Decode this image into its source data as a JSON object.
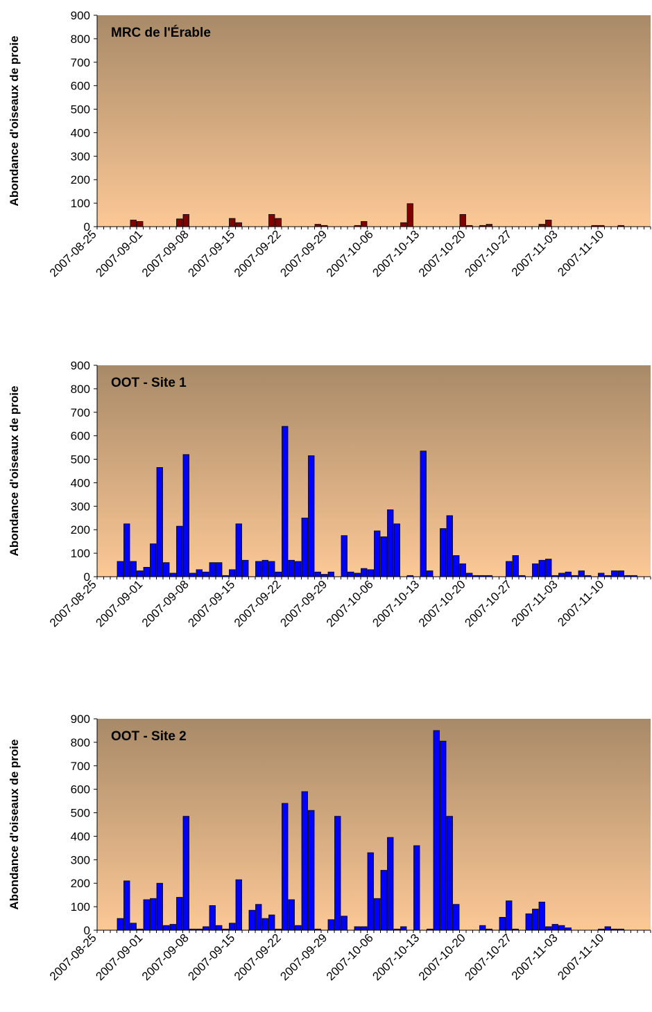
{
  "chart_data": [
    {
      "type": "bar",
      "title": "MRC de l'Érable",
      "ylabel": "Abondance d'oiseaux de proie",
      "xlabel": "",
      "ylim": [
        0,
        900
      ],
      "yticks": [
        "0",
        "100",
        "200",
        "300",
        "400",
        "500",
        "600",
        "700",
        "800",
        "900"
      ],
      "x_start": "2007-08-25",
      "x_end": "2007-11-17",
      "xtick_labels": [
        "2007-08-25",
        "2007-09-01",
        "2007-09-08",
        "2007-09-15",
        "2007-09-22",
        "2007-09-29",
        "2007-10-06",
        "2007-10-13",
        "2007-10-20",
        "2007-10-27",
        "2007-11-03",
        "2007-11-10"
      ],
      "bar_color": "#800000",
      "background_gradient": [
        "#A88A68",
        "#FCC896"
      ],
      "grid": false,
      "legend": "none",
      "dates": [
        "2007-08-30",
        "2007-08-31",
        "2007-09-06",
        "2007-09-07",
        "2007-09-14",
        "2007-09-15",
        "2007-09-20",
        "2007-09-21",
        "2007-09-27",
        "2007-09-28",
        "2007-10-03",
        "2007-10-04",
        "2007-10-10",
        "2007-10-11",
        "2007-10-19",
        "2007-10-20",
        "2007-10-22",
        "2007-10-23",
        "2007-10-31",
        "2007-11-01",
        "2007-11-08",
        "2007-11-09",
        "2007-11-12"
      ],
      "values": [
        28,
        22,
        33,
        52,
        35,
        17,
        52,
        35,
        10,
        5,
        5,
        22,
        17,
        98,
        52,
        5,
        5,
        10,
        10,
        28,
        5,
        5,
        5
      ]
    },
    {
      "type": "bar",
      "title": "OOT - Site 1",
      "ylabel": "Abondance d'oiseaux de proie",
      "xlabel": "",
      "ylim": [
        0,
        900
      ],
      "yticks": [
        "0",
        "100",
        "200",
        "300",
        "400",
        "500",
        "600",
        "700",
        "800",
        "900"
      ],
      "x_start": "2007-08-25",
      "x_end": "2007-11-17",
      "xtick_labels": [
        "2007-08-25",
        "2007-09-01",
        "2007-09-08",
        "2007-09-15",
        "2007-09-22",
        "2007-09-29",
        "2007-10-06",
        "2007-10-13",
        "2007-10-20",
        "2007-10-27",
        "2007-11-03",
        "2007-11-10"
      ],
      "bar_color": "#0000FF",
      "background_gradient": [
        "#A88A68",
        "#FCC896"
      ],
      "grid": false,
      "legend": "none",
      "dates": [
        "2007-08-28",
        "2007-08-29",
        "2007-08-30",
        "2007-08-31",
        "2007-09-01",
        "2007-09-02",
        "2007-09-03",
        "2007-09-04",
        "2007-09-05",
        "2007-09-06",
        "2007-09-07",
        "2007-09-08",
        "2007-09-09",
        "2007-09-10",
        "2007-09-11",
        "2007-09-12",
        "2007-09-13",
        "2007-09-14",
        "2007-09-15",
        "2007-09-16",
        "2007-09-18",
        "2007-09-19",
        "2007-09-20",
        "2007-09-21",
        "2007-09-22",
        "2007-09-23",
        "2007-09-24",
        "2007-09-25",
        "2007-09-26",
        "2007-09-27",
        "2007-09-28",
        "2007-09-29",
        "2007-10-01",
        "2007-10-02",
        "2007-10-03",
        "2007-10-04",
        "2007-10-05",
        "2007-10-06",
        "2007-10-07",
        "2007-10-08",
        "2007-10-09",
        "2007-10-11",
        "2007-10-13",
        "2007-10-14",
        "2007-10-16",
        "2007-10-17",
        "2007-10-18",
        "2007-10-19",
        "2007-10-20",
        "2007-10-21",
        "2007-10-22",
        "2007-10-23",
        "2007-10-26",
        "2007-10-27",
        "2007-10-28",
        "2007-10-30",
        "2007-10-31",
        "2007-11-01",
        "2007-11-02",
        "2007-11-03",
        "2007-11-04",
        "2007-11-05",
        "2007-11-06",
        "2007-11-07",
        "2007-11-09",
        "2007-11-10",
        "2007-11-11",
        "2007-11-12",
        "2007-11-13",
        "2007-11-14"
      ],
      "values": [
        65,
        225,
        65,
        25,
        40,
        140,
        465,
        60,
        15,
        215,
        520,
        15,
        30,
        20,
        60,
        60,
        5,
        30,
        225,
        70,
        65,
        70,
        65,
        20,
        640,
        70,
        65,
        250,
        515,
        20,
        10,
        20,
        175,
        20,
        15,
        35,
        30,
        195,
        170,
        285,
        225,
        5,
        535,
        25,
        205,
        260,
        90,
        55,
        15,
        5,
        5,
        5,
        65,
        90,
        5,
        55,
        70,
        75,
        5,
        15,
        20,
        5,
        25,
        5,
        15,
        5,
        25,
        25,
        5,
        5
      ]
    },
    {
      "type": "bar",
      "title": "OOT - Site 2",
      "ylabel": "Abondance d'oiseaux de proie",
      "xlabel": "",
      "ylim": [
        0,
        900
      ],
      "yticks": [
        "0",
        "100",
        "200",
        "300",
        "400",
        "500",
        "600",
        "700",
        "800",
        "900"
      ],
      "x_start": "2007-08-25",
      "x_end": "2007-11-17",
      "xtick_labels": [
        "2007-08-25",
        "2007-09-01",
        "2007-09-08",
        "2007-09-15",
        "2007-09-22",
        "2007-09-29",
        "2007-10-06",
        "2007-10-13",
        "2007-10-20",
        "2007-10-27",
        "2007-11-03",
        "2007-11-10"
      ],
      "bar_color": "#0000FF",
      "background_gradient": [
        "#A88A68",
        "#FCC896"
      ],
      "grid": false,
      "legend": "none",
      "dates": [
        "2007-08-28",
        "2007-08-29",
        "2007-08-30",
        "2007-08-31",
        "2007-09-01",
        "2007-09-02",
        "2007-09-03",
        "2007-09-04",
        "2007-09-05",
        "2007-09-06",
        "2007-09-07",
        "2007-09-08",
        "2007-09-09",
        "2007-09-10",
        "2007-09-11",
        "2007-09-12",
        "2007-09-13",
        "2007-09-14",
        "2007-09-15",
        "2007-09-17",
        "2007-09-18",
        "2007-09-19",
        "2007-09-20",
        "2007-09-21",
        "2007-09-22",
        "2007-09-23",
        "2007-09-24",
        "2007-09-25",
        "2007-09-26",
        "2007-09-27",
        "2007-09-29",
        "2007-09-30",
        "2007-10-01",
        "2007-10-03",
        "2007-10-04",
        "2007-10-05",
        "2007-10-06",
        "2007-10-07",
        "2007-10-08",
        "2007-10-09",
        "2007-10-10",
        "2007-10-12",
        "2007-10-14",
        "2007-10-15",
        "2007-10-16",
        "2007-10-17",
        "2007-10-18",
        "2007-10-22",
        "2007-10-23",
        "2007-10-25",
        "2007-10-26",
        "2007-10-27",
        "2007-10-29",
        "2007-10-30",
        "2007-10-31",
        "2007-11-01",
        "2007-11-02",
        "2007-11-03",
        "2007-11-04",
        "2007-11-09",
        "2007-11-10",
        "2007-11-11",
        "2007-11-12"
      ],
      "values": [
        50,
        210,
        30,
        5,
        130,
        135,
        200,
        20,
        25,
        140,
        485,
        5,
        5,
        15,
        105,
        20,
        5,
        30,
        215,
        85,
        110,
        50,
        65,
        5,
        540,
        130,
        20,
        590,
        510,
        5,
        45,
        485,
        60,
        15,
        15,
        330,
        135,
        255,
        395,
        5,
        15,
        360,
        5,
        850,
        805,
        485,
        110,
        20,
        5,
        55,
        125,
        5,
        70,
        90,
        120,
        15,
        25,
        20,
        10,
        5,
        15,
        5,
        5
      ]
    }
  ]
}
